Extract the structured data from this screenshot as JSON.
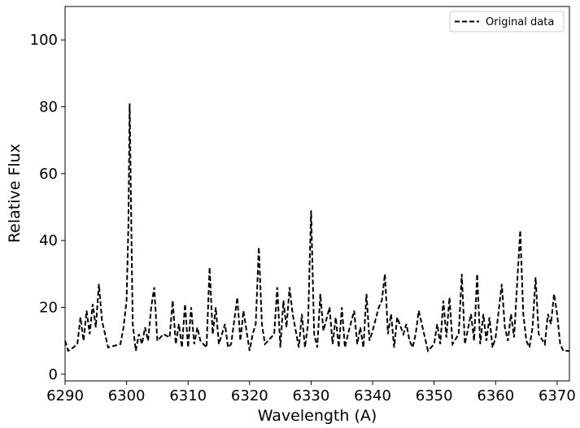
{
  "chart_data": {
    "type": "line",
    "xlabel": "Wavelength (A)",
    "ylabel": "Relative Flux",
    "xlim": [
      6290,
      6372
    ],
    "ylim": [
      -2,
      110
    ],
    "xticks": [
      6290,
      6300,
      6310,
      6320,
      6330,
      6340,
      6350,
      6360,
      6370
    ],
    "yticks": [
      0,
      20,
      40,
      60,
      80,
      100
    ],
    "legend": "upper right",
    "x": [
      6290,
      6290.5,
      6291,
      6292,
      6292.5,
      6293,
      6293.5,
      6294,
      6294.5,
      6295,
      6295.5,
      6296,
      6296.5,
      6297,
      6298,
      6299,
      6299.5,
      6300,
      6300.3,
      6300.5,
      6300.8,
      6301,
      6301.5,
      6302,
      6302.5,
      6303,
      6303.5,
      6304,
      6304.5,
      6305,
      6306,
      6307,
      6307.5,
      6308,
      6308.5,
      6309,
      6309.5,
      6310,
      6310.5,
      6311,
      6311.5,
      6312,
      6313,
      6313.5,
      6314,
      6314.5,
      6315,
      6316,
      6316.5,
      6317,
      6318,
      6318.5,
      6319,
      6320,
      6320.5,
      6321,
      6321.5,
      6322,
      6322.5,
      6323,
      6324,
      6324.5,
      6325,
      6325.5,
      6326,
      6326.5,
      6327,
      6328,
      6328.5,
      6329,
      6329.5,
      6330,
      6330.5,
      6331,
      6331.5,
      6332,
      6333,
      6333.5,
      6334,
      6334.5,
      6335,
      6335.5,
      6336,
      6337,
      6337.5,
      6338,
      6338.5,
      6339,
      6339.5,
      6340,
      6341,
      6341.5,
      6342,
      6342.5,
      6343,
      6343.5,
      6344,
      6345,
      6345.5,
      6346,
      6346.5,
      6347,
      6347.5,
      6348,
      6349,
      6350,
      6350.5,
      6351,
      6351.5,
      6352,
      6352.5,
      6353,
      6354,
      6354.5,
      6355,
      6356,
      6356.5,
      6357,
      6357.5,
      6358,
      6358.5,
      6359,
      6359.5,
      6360,
      6361,
      6361.5,
      6362,
      6362.5,
      6363,
      6364,
      6364.5,
      6365,
      6365.5,
      6366,
      6366.5,
      6367,
      6368,
      6368.5,
      6369,
      6369.5,
      6370,
      6370.5,
      6371,
      6372
    ],
    "series": [
      {
        "name": "Original data",
        "color": "#000000",
        "dashed": true,
        "values": [
          10,
          7,
          7.5,
          9,
          17,
          10,
          19,
          12,
          21,
          14,
          27,
          16,
          12,
          8,
          8.5,
          9,
          14,
          22,
          45,
          81,
          40,
          15,
          7,
          12,
          9,
          14,
          10,
          20,
          26,
          10,
          12,
          11,
          22,
          9,
          15,
          8,
          21,
          8,
          20,
          9,
          14,
          10,
          8,
          32,
          12,
          20,
          9,
          15,
          8,
          9,
          23,
          10,
          19,
          7,
          12,
          15,
          38,
          15,
          9,
          10,
          12,
          26,
          8,
          22,
          14,
          26,
          18,
          8,
          18,
          8,
          15,
          49,
          12,
          8,
          24,
          13,
          20,
          9,
          17,
          8,
          20,
          8,
          12,
          19,
          9,
          14,
          8,
          24,
          10,
          13,
          20,
          22,
          30,
          12,
          18,
          8,
          17,
          12,
          15,
          10,
          8,
          12,
          19,
          15,
          7,
          9,
          15,
          9,
          22,
          11,
          23,
          9,
          12,
          30,
          9,
          18,
          10,
          30,
          9,
          18,
          10,
          17,
          8,
          11,
          27,
          14,
          10,
          18,
          11,
          43,
          18,
          10,
          8,
          14,
          29,
          12,
          9,
          18,
          15,
          24,
          18,
          9,
          7,
          7
        ]
      }
    ]
  }
}
